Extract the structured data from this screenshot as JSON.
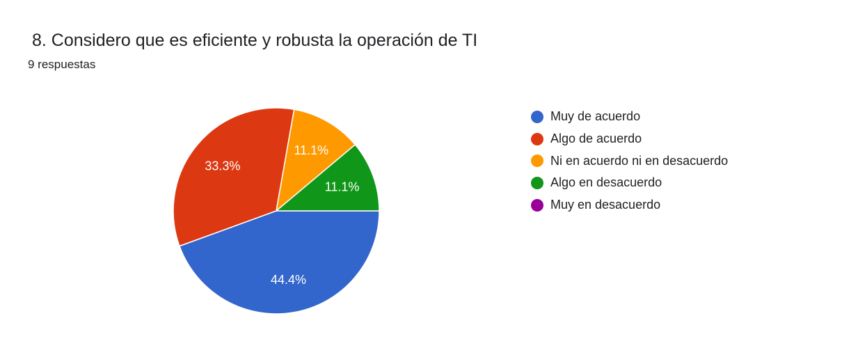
{
  "header": {
    "title": "8. Considero que es eficiente y robusta la operación de TI",
    "response_count": "9 respuestas"
  },
  "chart_data": {
    "type": "pie",
    "title": "8. Considero que es eficiente y robusta la operación de TI",
    "subtitle": "9 respuestas",
    "legend_position": "right",
    "slices": [
      {
        "label": "Muy de acuerdo",
        "value": 4,
        "percent_label": "44.4%",
        "color": "#3366cc"
      },
      {
        "label": "Algo de acuerdo",
        "value": 3,
        "percent_label": "33.3%",
        "color": "#dc3912"
      },
      {
        "label": "Ni en acuerdo ni en desacuerdo",
        "value": 1,
        "percent_label": "11.1%",
        "color": "#ff9900"
      },
      {
        "label": "Algo en desacuerdo",
        "value": 1,
        "percent_label": "11.1%",
        "color": "#109618"
      },
      {
        "label": "Muy en desacuerdo",
        "value": 0,
        "percent_label": "",
        "color": "#990099"
      }
    ]
  }
}
